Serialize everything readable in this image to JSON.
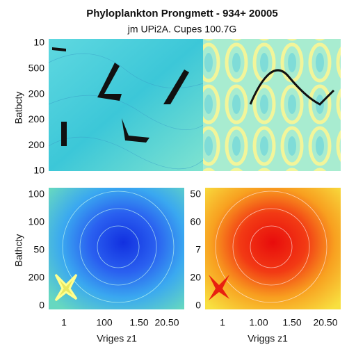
{
  "title": "Phyloplankton Prongmett - 934+ 20005",
  "subtitle": "jm UPi2A. Cupes 100.7G",
  "panels": [
    {
      "y_axis_label": "Batbcty",
      "y_labels": [
        "10",
        "500",
        "200",
        "200",
        "200",
        "10"
      ]
    },
    {
      "y_axis_label": "Bathcty",
      "y_labels": [
        "100",
        "100",
        "50",
        "200",
        "0"
      ],
      "x_labels": [
        "1",
        "100",
        "1.50",
        "20.50"
      ],
      "x_axis_label": "Vriges z1"
    },
    {
      "y_labels": [
        "50",
        "60",
        "7",
        "20",
        "0"
      ],
      "x_labels": [
        "1",
        "1.00",
        "1.50",
        "20.50"
      ],
      "x_axis_label": "Vriggs z1"
    }
  ]
}
